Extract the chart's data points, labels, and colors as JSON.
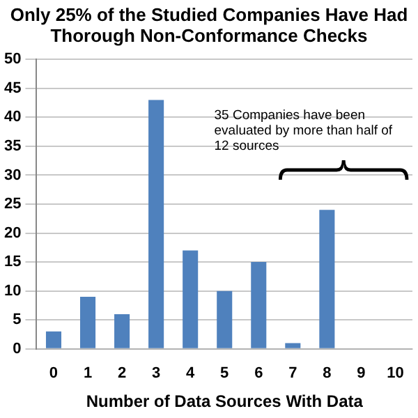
{
  "chart_data": {
    "type": "bar",
    "title": "Only 25% of the Studied Companies Have Had Thorough Non-Conformance Checks",
    "xlabel": "Number of Data Sources With Data",
    "categories": [
      "0",
      "1",
      "2",
      "3",
      "4",
      "5",
      "6",
      "7",
      "8",
      "9",
      "10"
    ],
    "values": [
      3,
      9,
      6,
      43,
      17,
      10,
      15,
      1,
      24,
      0,
      0
    ],
    "color": "#4f81bd",
    "ylim": [
      0,
      50
    ],
    "yticks": [
      0,
      5,
      10,
      15,
      20,
      25,
      30,
      35,
      40,
      45,
      50
    ],
    "grid": "y",
    "annotations": [
      "35 Companies have been evaluated by more than half of 12 sources"
    ]
  }
}
